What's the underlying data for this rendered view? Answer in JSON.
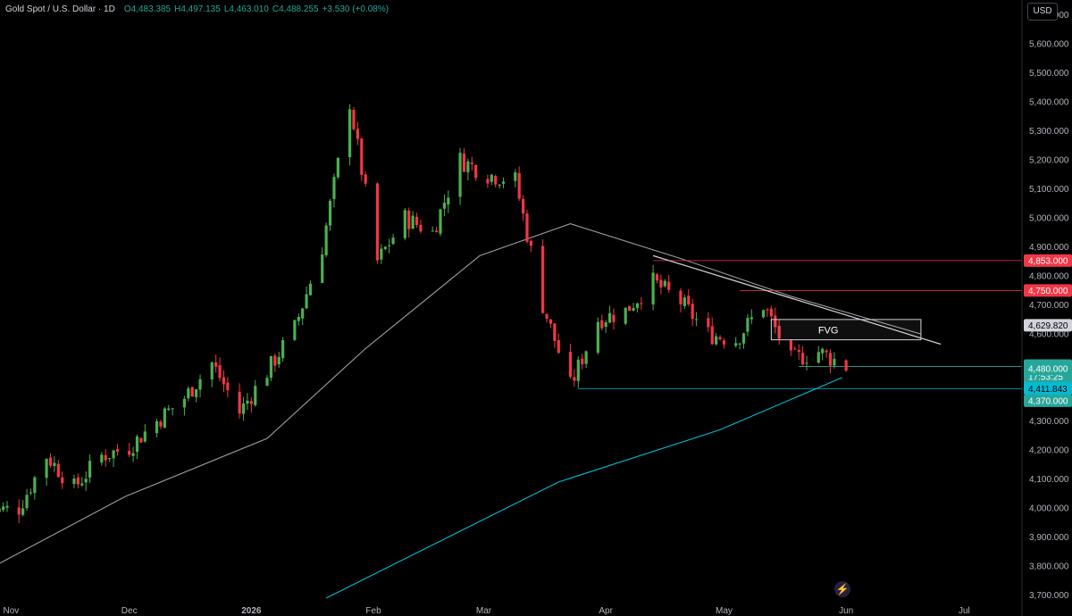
{
  "header": {
    "symbol": "Gold Spot / U.S. Dollar · 1D",
    "open": "O4,483.385",
    "high": "H4,497.135",
    "low": "L4,463.010",
    "close": "C4,488.255",
    "change": "+3.530 (+0.08%)"
  },
  "currency_button": "USD",
  "colors": {
    "up": "#26a69a",
    "up_candle": "#4caf50",
    "down": "#f23645",
    "ma_fast": "#9e9e9e",
    "ma_slow": "#00bcd4",
    "resistance": "#f23645",
    "background": "#000000"
  },
  "chart_data": {
    "type": "candlestick",
    "symbol": "Gold Spot / U.S. Dollar",
    "interval": "1D",
    "x_axis_labels": [
      "Nov",
      "Dec",
      "2026",
      "Feb",
      "Mar",
      "Apr",
      "May",
      "Jun",
      "Jul"
    ],
    "y_ticks": [
      3700,
      3800,
      3900,
      4000,
      4100,
      4200,
      4300,
      4400,
      4500,
      4600,
      4700,
      4800,
      4900,
      5000,
      5100,
      5200,
      5300,
      5400,
      5500,
      5600,
      5700
    ],
    "y_tick_labels": [
      "3,700.000",
      "3,800.000",
      "3,900.000",
      "4,000.000",
      "4,100.000",
      "4,200.000",
      "4,300.000",
      "4,400.000",
      "4,500.000",
      "4,600.000",
      "4,700.000",
      "4,800.000",
      "4,900.000",
      "5,000.000",
      "5,100.000",
      "5,200.000",
      "5,300.000",
      "5,400.000",
      "5,500.000",
      "5,600.000",
      "5,700.000"
    ],
    "ylim": [
      3665,
      5745
    ],
    "grid": false,
    "close_path": [
      [
        "2025-10-27",
        3990
      ],
      [
        "2025-11-03",
        4000
      ],
      [
        "2025-11-10",
        4180
      ],
      [
        "2025-11-17",
        4070
      ],
      [
        "2025-11-24",
        4180
      ],
      [
        "2025-12-01",
        4210
      ],
      [
        "2025-12-08",
        4300
      ],
      [
        "2025-12-15",
        4380
      ],
      [
        "2025-12-22",
        4500
      ],
      [
        "2025-12-29",
        4330
      ],
      [
        "2026-01-05",
        4470
      ],
      [
        "2026-01-12",
        4620
      ],
      [
        "2026-01-19",
        4900
      ],
      [
        "2026-01-26",
        5400
      ],
      [
        "2026-02-02",
        4850
      ],
      [
        "2026-02-09",
        5000
      ],
      [
        "2026-02-16",
        4950
      ],
      [
        "2026-02-23",
        5200
      ],
      [
        "2026-03-02",
        5150
      ],
      [
        "2026-03-09",
        5130
      ],
      [
        "2026-03-16",
        4700
      ],
      [
        "2026-03-23",
        4420
      ],
      [
        "2026-03-30",
        4650
      ],
      [
        "2026-04-06",
        4680
      ],
      [
        "2026-04-13",
        4780
      ],
      [
        "2026-04-20",
        4710
      ],
      [
        "2026-04-27",
        4600
      ],
      [
        "2026-05-04",
        4580
      ],
      [
        "2026-05-11",
        4700
      ],
      [
        "2026-05-18",
        4510
      ],
      [
        "2026-05-25",
        4540
      ],
      [
        "2026-06-01",
        4488.255
      ]
    ],
    "annotations": {
      "horizontal_levels": [
        {
          "price": 4853,
          "label": "4,853.000",
          "color": "#f23645"
        },
        {
          "price": 4750,
          "label": "4,750.000",
          "color": "#f23645"
        },
        {
          "price": 4411.843,
          "label": "4,411.843",
          "color": "#00bcd4"
        }
      ],
      "current_price": {
        "label": "4,488.255",
        "countdown": "17:53:25"
      },
      "fvg": {
        "label": "FVG",
        "top": 4650,
        "bottom": 4580,
        "price_label": "4,629.820"
      },
      "support_zone_labels": [
        "4,480.000",
        "4,370.000"
      ],
      "trendline": [
        [
          "2026-04-13",
          4870
        ],
        [
          "2026-06-25",
          4565
        ]
      ]
    },
    "moving_averages": [
      {
        "name": "MA fast",
        "color": "#9e9e9e",
        "points": [
          [
            "2025-10-25",
            3780
          ],
          [
            "2025-11-30",
            4040
          ],
          [
            "2026-01-05",
            4240
          ],
          [
            "2026-01-30",
            4550
          ],
          [
            "2026-02-28",
            4870
          ],
          [
            "2026-03-23",
            4980
          ],
          [
            "2026-04-20",
            4860
          ],
          [
            "2026-05-18",
            4730
          ],
          [
            "2026-06-20",
            4600
          ]
        ]
      },
      {
        "name": "MA slow",
        "color": "#00bcd4",
        "points": [
          [
            "2026-01-20",
            3690
          ],
          [
            "2026-03-20",
            4090
          ],
          [
            "2026-04-30",
            4270
          ],
          [
            "2026-05-31",
            4450
          ]
        ]
      }
    ]
  }
}
